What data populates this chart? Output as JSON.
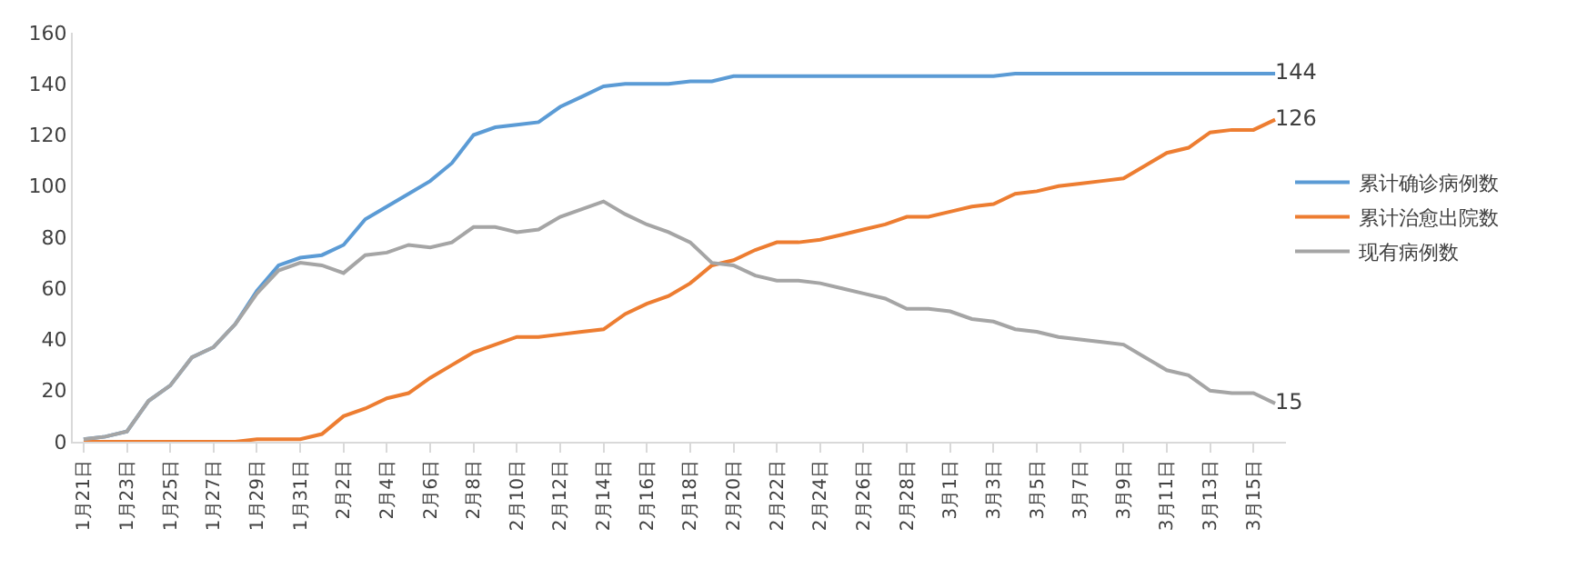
{
  "chart_data": {
    "type": "line",
    "categories": [
      "1月21日",
      null,
      "1月23日",
      null,
      "1月25日",
      null,
      "1月27日",
      null,
      "1月29日",
      null,
      "1月31日",
      null,
      "2月2日",
      null,
      "2月4日",
      null,
      "2月6日",
      null,
      "2月8日",
      null,
      "2月10日",
      null,
      "2月12日",
      null,
      "2月14日",
      null,
      "2月16日",
      null,
      "2月18日",
      null,
      "2月20日",
      null,
      "2月22日",
      null,
      "2月24日",
      null,
      "2月26日",
      null,
      "2月28日",
      null,
      "3月1日",
      null,
      "3月3日",
      null,
      "3月5日",
      null,
      "3月7日",
      null,
      "3月9日",
      null,
      "3月11日",
      null,
      "3月13日",
      null,
      "3月15日",
      null
    ],
    "series": [
      {
        "name": "累计确诊病例数",
        "color": "#5b9bd5",
        "values": [
          1,
          2,
          4,
          16,
          22,
          33,
          37,
          46,
          59,
          69,
          72,
          73,
          77,
          87,
          92,
          97,
          102,
          109,
          120,
          123,
          124,
          125,
          131,
          135,
          139,
          140,
          140,
          140,
          141,
          141,
          143,
          143,
          143,
          143,
          143,
          143,
          143,
          143,
          143,
          143,
          143,
          143,
          143,
          144,
          144,
          144,
          144,
          144,
          144,
          144,
          144,
          144,
          144,
          144,
          144,
          144
        ],
        "value_labels": [
          null,
          null,
          null,
          null,
          null,
          null,
          null,
          null,
          null,
          null,
          null,
          null,
          null,
          null,
          null,
          null,
          null,
          null,
          null,
          null,
          null,
          null,
          null,
          null,
          null,
          null,
          null,
          null,
          null,
          null,
          null,
          null,
          null,
          null,
          null,
          null,
          null,
          null,
          null,
          null,
          null,
          null,
          null,
          null,
          null,
          null,
          null,
          null,
          null,
          null,
          null,
          null,
          null,
          null,
          null,
          "144"
        ]
      },
      {
        "name": "累计治愈出院数",
        "color": "#ed7d31",
        "values": [
          0,
          0,
          0,
          0,
          0,
          0,
          0,
          0,
          1,
          1,
          1,
          3,
          10,
          13,
          17,
          19,
          25,
          30,
          35,
          38,
          41,
          41,
          42,
          43,
          44,
          50,
          54,
          57,
          62,
          69,
          71,
          75,
          78,
          78,
          79,
          81,
          83,
          85,
          88,
          88,
          90,
          92,
          93,
          97,
          98,
          100,
          101,
          102,
          103,
          108,
          113,
          115,
          121,
          122,
          122,
          126
        ],
        "value_labels": [
          null,
          null,
          null,
          null,
          null,
          null,
          null,
          null,
          null,
          null,
          null,
          null,
          null,
          null,
          null,
          null,
          null,
          null,
          null,
          null,
          null,
          null,
          null,
          null,
          null,
          null,
          null,
          null,
          null,
          null,
          null,
          null,
          null,
          null,
          null,
          null,
          null,
          null,
          null,
          null,
          null,
          null,
          null,
          null,
          null,
          null,
          null,
          null,
          null,
          null,
          null,
          null,
          null,
          null,
          null,
          "126"
        ]
      },
      {
        "name": "现有病例数",
        "color": "#a5a5a5",
        "values": [
          1,
          2,
          4,
          16,
          22,
          33,
          37,
          46,
          58,
          67,
          70,
          69,
          66,
          73,
          74,
          77,
          76,
          78,
          84,
          84,
          82,
          83,
          88,
          91,
          94,
          89,
          85,
          82,
          78,
          70,
          69,
          65,
          63,
          63,
          62,
          60,
          58,
          56,
          52,
          52,
          51,
          48,
          47,
          44,
          43,
          41,
          40,
          39,
          38,
          33,
          28,
          26,
          20,
          19,
          19,
          15
        ],
        "value_labels": [
          null,
          null,
          null,
          null,
          null,
          null,
          null,
          null,
          null,
          null,
          null,
          null,
          null,
          null,
          null,
          null,
          null,
          null,
          null,
          null,
          null,
          null,
          null,
          null,
          null,
          null,
          null,
          null,
          null,
          null,
          null,
          null,
          null,
          null,
          null,
          null,
          null,
          null,
          null,
          null,
          null,
          null,
          null,
          null,
          null,
          null,
          null,
          null,
          null,
          null,
          null,
          null,
          null,
          null,
          null,
          "15"
        ]
      }
    ],
    "ylim": [
      0,
      160
    ],
    "yticks": [
      0,
      20,
      40,
      60,
      80,
      100,
      120,
      140,
      160
    ],
    "grid": false,
    "legend": "right",
    "marker": "none",
    "line_style": "solid"
  }
}
